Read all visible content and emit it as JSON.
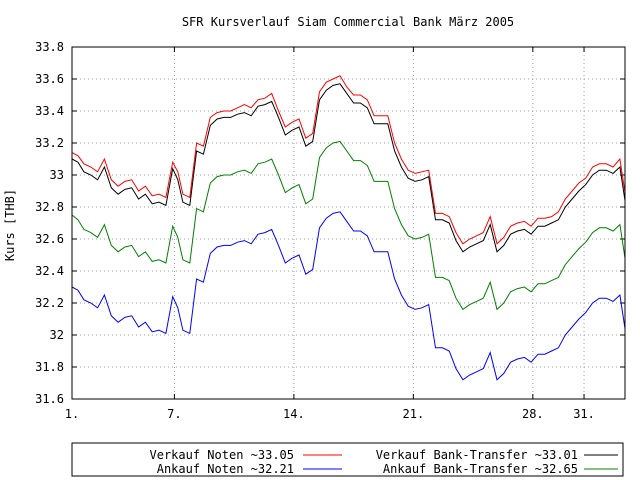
{
  "chart_data": {
    "type": "line",
    "title": "SFR Kursverlauf Siam Commercial Bank März 2005",
    "xlabel": "",
    "ylabel": "Kurs [THB]",
    "ylim": [
      31.6,
      33.8
    ],
    "y_ticks": [
      "31.6",
      "31.8",
      "32",
      "32.2",
      "32.4",
      "32.6",
      "32.8",
      "33",
      "33.2",
      "33.4",
      "33.6",
      "33.8"
    ],
    "x_ticks": [
      {
        "label": "1.",
        "day": 1
      },
      {
        "label": "7.",
        "day": 7
      },
      {
        "label": "14.",
        "day": 14
      },
      {
        "label": "21.",
        "day": 21
      },
      {
        "label": "28.",
        "day": 28
      },
      {
        "label": "31.",
        "day": 31
      }
    ],
    "xlim": [
      1,
      33.4
    ],
    "grid": true,
    "legend_position": "bottom",
    "x": [
      1,
      1.35,
      1.7,
      2.1,
      2.5,
      2.9,
      3.3,
      3.7,
      4.1,
      4.5,
      4.9,
      5.3,
      5.7,
      6.1,
      6.5,
      6.9,
      7.2,
      7.5,
      7.9,
      8.3,
      8.7,
      9.1,
      9.5,
      9.9,
      10.3,
      10.7,
      11.1,
      11.5,
      11.9,
      12.3,
      12.7,
      13.1,
      13.5,
      13.9,
      14.3,
      14.7,
      15.1,
      15.5,
      15.9,
      16.3,
      16.7,
      17.1,
      17.5,
      17.9,
      18.3,
      18.7,
      19.1,
      19.5,
      19.9,
      20.3,
      20.7,
      21.1,
      21.5,
      21.9,
      22.3,
      22.7,
      23.1,
      23.5,
      23.9,
      24.3,
      24.7,
      25.1,
      25.5,
      25.9,
      26.3,
      26.7,
      27.1,
      27.5,
      27.9,
      28.3,
      28.7,
      29.1,
      29.5,
      29.9,
      30.3,
      30.7,
      31.1,
      31.5,
      31.9,
      32.3,
      32.7,
      33.1,
      33.4
    ],
    "series": [
      {
        "name": "Verkauf Noten ~33.05",
        "color": "#ff0000",
        "values": [
          33.14,
          33.12,
          33.07,
          33.05,
          33.02,
          33.1,
          32.97,
          32.93,
          32.96,
          32.97,
          32.9,
          32.93,
          32.87,
          32.88,
          32.86,
          33.08,
          33.02,
          32.88,
          32.86,
          33.2,
          33.18,
          33.36,
          33.39,
          33.4,
          33.4,
          33.42,
          33.44,
          33.42,
          33.47,
          33.48,
          33.51,
          33.4,
          33.3,
          33.33,
          33.35,
          33.23,
          33.26,
          33.52,
          33.58,
          33.6,
          33.62,
          33.55,
          33.5,
          33.5,
          33.47,
          33.37,
          33.37,
          33.37,
          33.2,
          33.1,
          33.03,
          33.01,
          33.02,
          33.03,
          32.76,
          32.76,
          32.74,
          32.64,
          32.57,
          32.6,
          32.62,
          32.64,
          32.74,
          32.57,
          32.61,
          32.68,
          32.7,
          32.71,
          32.68,
          32.73,
          32.73,
          32.74,
          32.77,
          32.85,
          32.9,
          32.95,
          32.98,
          33.05,
          33.07,
          33.07,
          33.05,
          33.1,
          32.89
        ]
      },
      {
        "name": "Verkauf Bank-Transfer ~33.01",
        "color": "#000000",
        "values": [
          33.1,
          33.08,
          33.02,
          33.0,
          32.97,
          33.05,
          32.92,
          32.88,
          32.91,
          32.92,
          32.85,
          32.88,
          32.82,
          32.83,
          32.81,
          33.04,
          32.97,
          32.83,
          32.81,
          33.15,
          33.13,
          33.31,
          33.35,
          33.36,
          33.36,
          33.38,
          33.39,
          33.37,
          33.43,
          33.44,
          33.46,
          33.36,
          33.25,
          33.28,
          33.3,
          33.18,
          33.21,
          33.47,
          33.53,
          33.56,
          33.57,
          33.51,
          33.45,
          33.45,
          33.42,
          33.32,
          33.32,
          33.32,
          33.15,
          33.05,
          32.98,
          32.96,
          32.97,
          32.99,
          32.72,
          32.72,
          32.7,
          32.59,
          32.52,
          32.55,
          32.57,
          32.59,
          32.69,
          32.52,
          32.56,
          32.63,
          32.65,
          32.66,
          32.63,
          32.68,
          32.68,
          32.7,
          32.72,
          32.8,
          32.85,
          32.9,
          32.94,
          33.0,
          33.03,
          33.03,
          33.01,
          33.05,
          32.84
        ]
      },
      {
        "name": "Ankauf Noten ~32.21",
        "color": "#0000ff",
        "values": [
          32.3,
          32.28,
          32.22,
          32.2,
          32.17,
          32.25,
          32.12,
          32.08,
          32.11,
          32.12,
          32.05,
          32.08,
          32.02,
          32.03,
          32.01,
          32.24,
          32.17,
          32.03,
          32.01,
          32.35,
          32.33,
          32.51,
          32.55,
          32.56,
          32.56,
          32.58,
          32.59,
          32.57,
          32.63,
          32.64,
          32.66,
          32.56,
          32.45,
          32.48,
          32.5,
          32.38,
          32.41,
          32.67,
          32.73,
          32.76,
          32.77,
          32.71,
          32.65,
          32.65,
          32.62,
          32.52,
          32.52,
          32.52,
          32.35,
          32.25,
          32.18,
          32.16,
          32.17,
          32.19,
          31.92,
          31.92,
          31.9,
          31.79,
          31.72,
          31.75,
          31.77,
          31.79,
          31.89,
          31.72,
          31.76,
          31.83,
          31.85,
          31.86,
          31.83,
          31.88,
          31.88,
          31.9,
          31.92,
          32.0,
          32.05,
          32.1,
          32.14,
          32.2,
          32.23,
          32.23,
          32.21,
          32.25,
          32.04
        ]
      },
      {
        "name": "Ankauf Bank-Transfer ~32.65",
        "color": "#008000",
        "values": [
          32.75,
          32.72,
          32.66,
          32.64,
          32.61,
          32.69,
          32.56,
          32.52,
          32.55,
          32.56,
          32.49,
          32.52,
          32.46,
          32.47,
          32.45,
          32.68,
          32.61,
          32.47,
          32.45,
          32.79,
          32.77,
          32.95,
          32.99,
          33.0,
          33.0,
          33.02,
          33.03,
          33.01,
          33.07,
          33.08,
          33.1,
          33.0,
          32.89,
          32.92,
          32.94,
          32.82,
          32.85,
          33.11,
          33.17,
          33.2,
          33.21,
          33.15,
          33.09,
          33.09,
          33.06,
          32.96,
          32.96,
          32.96,
          32.79,
          32.69,
          32.62,
          32.6,
          32.61,
          32.63,
          32.36,
          32.36,
          32.34,
          32.23,
          32.16,
          32.19,
          32.21,
          32.23,
          32.33,
          32.16,
          32.2,
          32.27,
          32.29,
          32.3,
          32.27,
          32.32,
          32.32,
          32.34,
          32.36,
          32.44,
          32.49,
          32.54,
          32.58,
          32.64,
          32.67,
          32.67,
          32.65,
          32.69,
          32.48
        ]
      }
    ],
    "legend_rows": [
      [
        0,
        1
      ],
      [
        2,
        3
      ]
    ]
  }
}
